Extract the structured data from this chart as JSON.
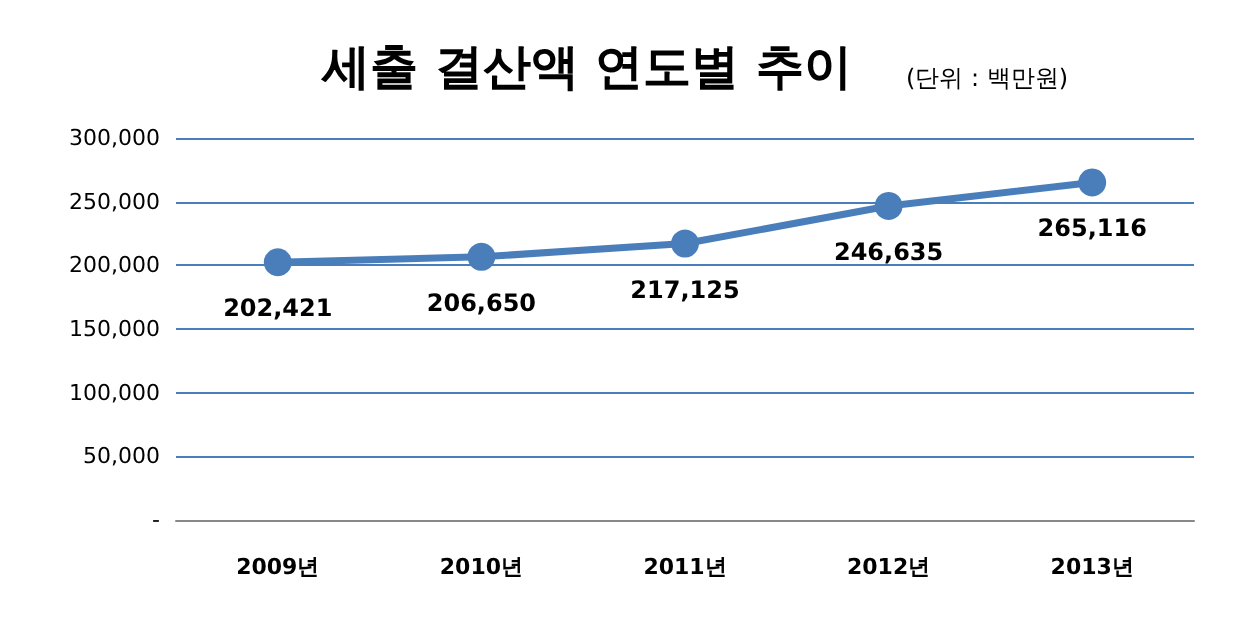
{
  "chart_data": {
    "type": "line",
    "title": "세출 결산액 연도별 추이",
    "subtitle": "(단위 : 백만원)",
    "categories": [
      "2009년",
      "2010년",
      "2011년",
      "2012년",
      "2013년"
    ],
    "series": [
      {
        "color": "#4a7ebb",
        "values": [
          202421,
          206650,
          217125,
          246635,
          265116
        ],
        "value_labels": [
          "202,421",
          "206,650",
          "217,125",
          "246,635",
          "265,116"
        ]
      }
    ],
    "ylim": [
      0,
      300000
    ],
    "yticks": [
      {
        "value": 0,
        "label": "-"
      },
      {
        "value": 50000,
        "label": "50,000"
      },
      {
        "value": 100000,
        "label": "100,000"
      },
      {
        "value": 150000,
        "label": "150,000"
      },
      {
        "value": 200000,
        "label": "200,000"
      },
      {
        "value": 250000,
        "label": "250,000"
      },
      {
        "value": 300000,
        "label": "300,000"
      }
    ],
    "grid": "y",
    "marker": "circle",
    "line_style": "solid"
  }
}
